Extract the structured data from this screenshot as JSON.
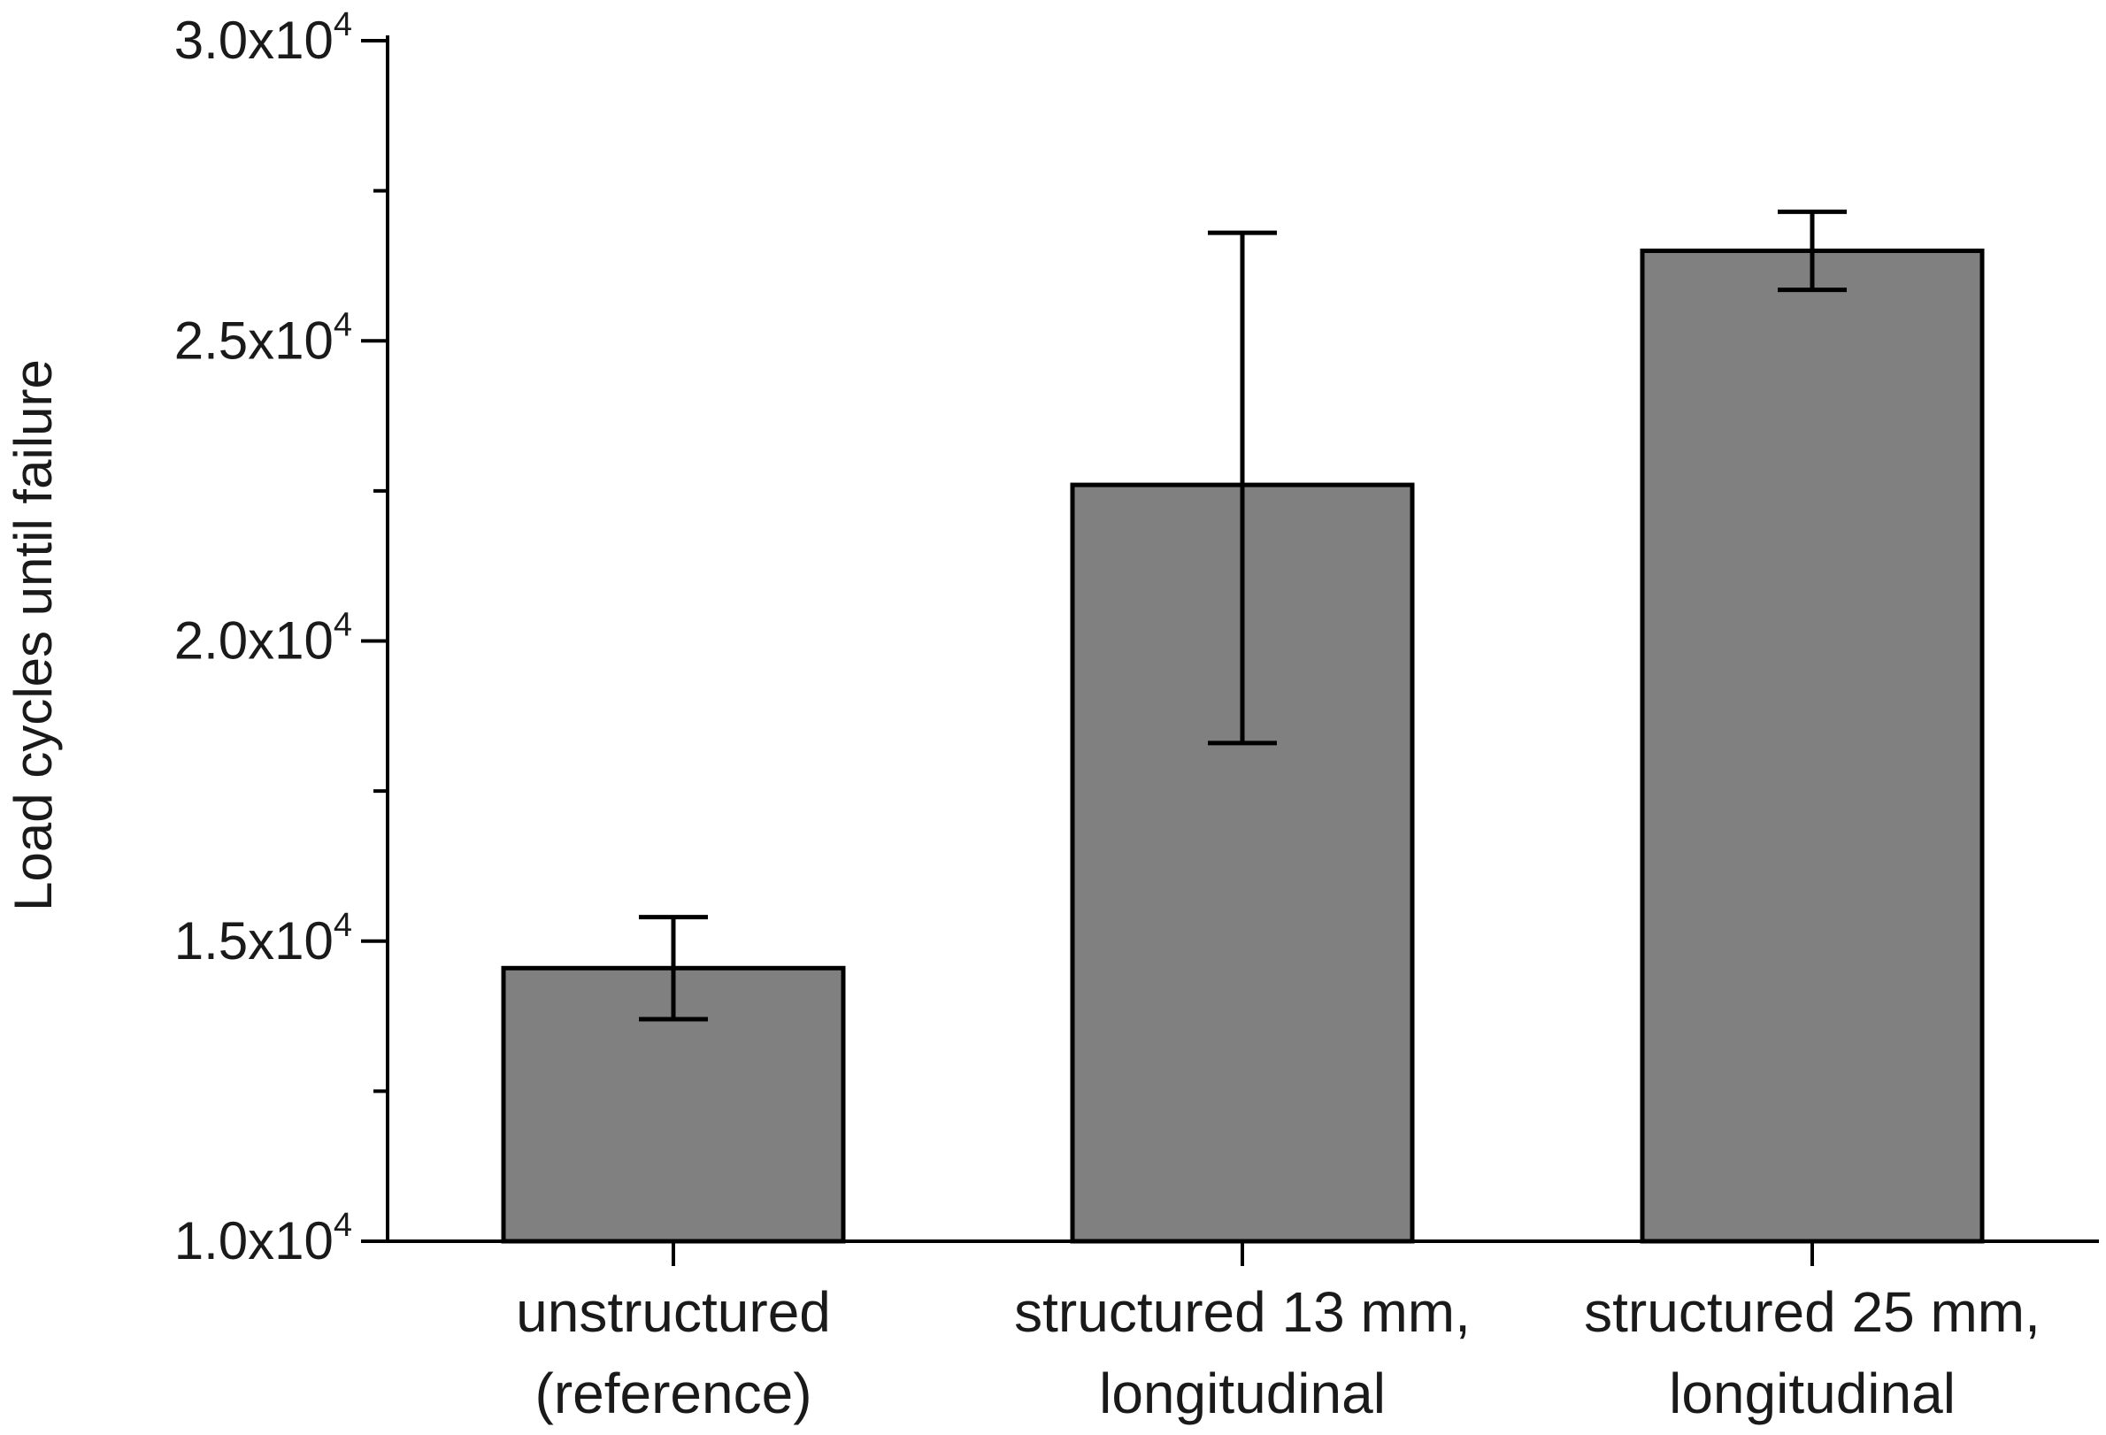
{
  "chart_data": {
    "type": "bar",
    "title": "",
    "xlabel": "",
    "ylabel": "Load cycles until failure",
    "ylim": [
      10000,
      30000
    ],
    "y_major_ticks": [
      10000,
      15000,
      20000,
      25000,
      30000
    ],
    "y_minor_ticks": [
      12500,
      17500,
      22500,
      27500
    ],
    "y_tick_labels": [
      {
        "mantissa": "1.0x10",
        "exponent": "4"
      },
      {
        "mantissa": "1.5x10",
        "exponent": "4"
      },
      {
        "mantissa": "2.0x10",
        "exponent": "4"
      },
      {
        "mantissa": "2.5x10",
        "exponent": "4"
      },
      {
        "mantissa": "3.0x10",
        "exponent": "4"
      }
    ],
    "categories": [
      [
        "unstructured",
        "(reference)"
      ],
      [
        "structured 13 mm,",
        "longitudinal"
      ],
      [
        "structured 25 mm,",
        "longitudinal"
      ]
    ],
    "values": [
      14550,
      22600,
      26500
    ],
    "error_low": [
      13700,
      18300,
      25850
    ],
    "error_high": [
      15400,
      26800,
      27150
    ],
    "grid": false,
    "colors": {
      "bar_fill": "#808080",
      "bar_stroke": "#000000",
      "axis": "#000000",
      "text": "#1a1a1a"
    }
  }
}
